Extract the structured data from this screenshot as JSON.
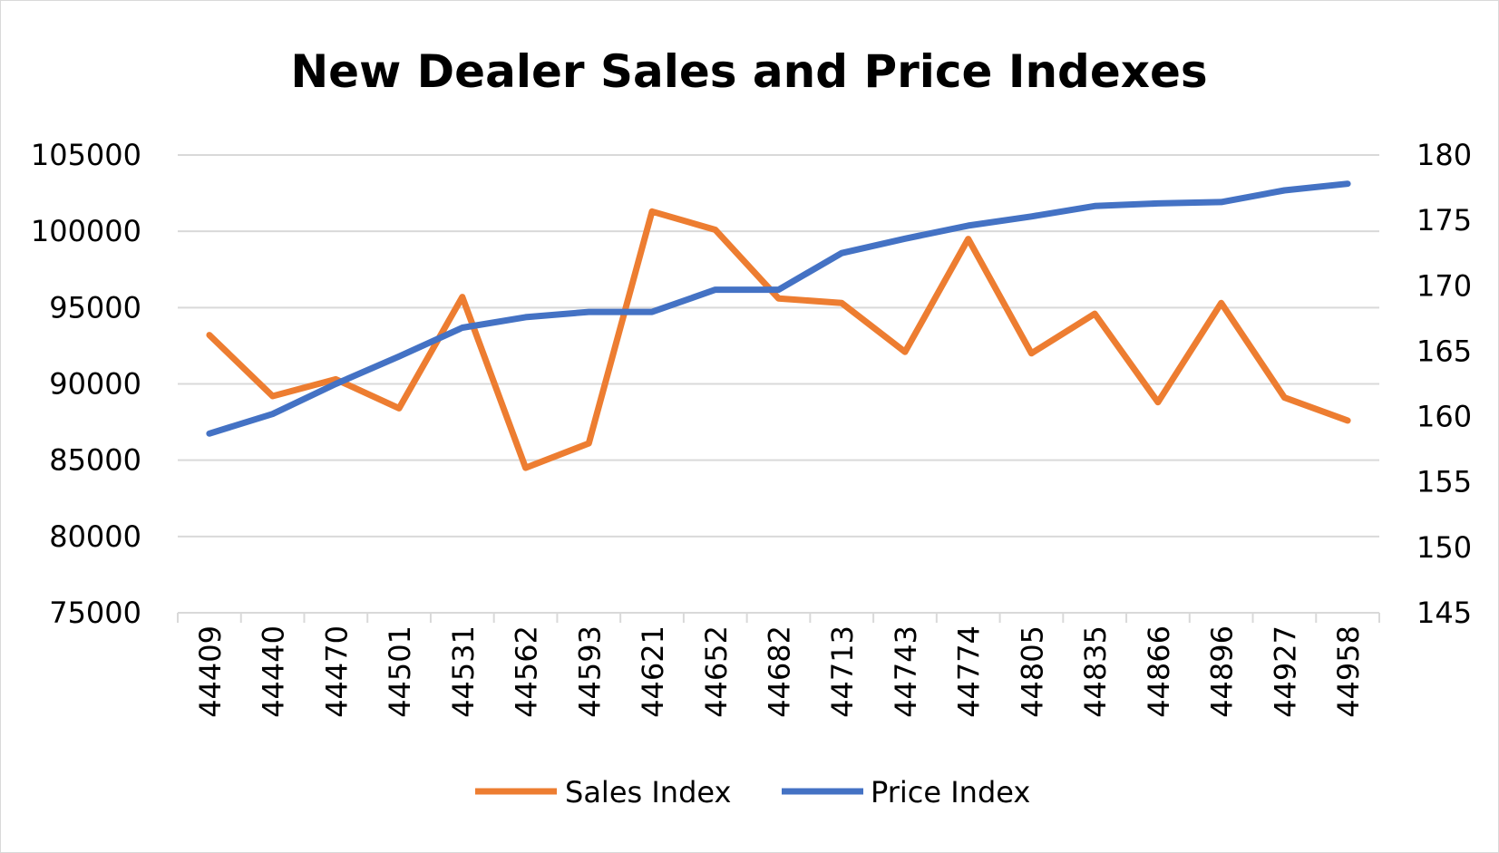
{
  "chart_data": {
    "type": "line",
    "title": "New Dealer Sales and Price Indexes",
    "x": [
      "44409",
      "44440",
      "44470",
      "44501",
      "44531",
      "44562",
      "44593",
      "44621",
      "44652",
      "44682",
      "44713",
      "44743",
      "44774",
      "44805",
      "44835",
      "44866",
      "44896",
      "44927",
      "44958"
    ],
    "series": [
      {
        "name": "Sales Index",
        "axis": "left",
        "color": "#ED7D31",
        "values": [
          93200,
          89200,
          90300,
          88400,
          95700,
          84500,
          86100,
          101300,
          100100,
          95600,
          95300,
          92100,
          99500,
          92000,
          94600,
          88800,
          95300,
          89100,
          87600
        ]
      },
      {
        "name": "Price Index",
        "axis": "right",
        "color": "#4472C4",
        "values": [
          158.7,
          160.2,
          162.5,
          164.6,
          166.8,
          167.6,
          168.0,
          168.0,
          169.7,
          169.7,
          172.5,
          173.6,
          174.6,
          175.3,
          176.1,
          176.3,
          176.4,
          177.3,
          177.8
        ]
      }
    ],
    "y_left": {
      "min": 75000,
      "max": 105000,
      "step": 5000,
      "ticks": [
        "105000",
        "100000",
        "95000",
        "90000",
        "85000",
        "80000",
        "75000"
      ]
    },
    "y_right": {
      "min": 145,
      "max": 180,
      "step": 5,
      "ticks": [
        "180",
        "175",
        "170",
        "165",
        "160",
        "155",
        "150",
        "145"
      ]
    },
    "grid": true,
    "legend": "bottom",
    "gridline_color": "#d9d9d9"
  }
}
